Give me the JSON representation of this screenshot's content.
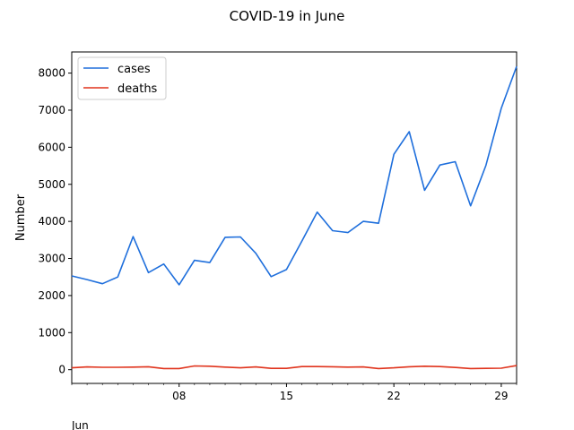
{
  "chart_data": {
    "type": "line",
    "title": "COVID-19 in June",
    "xlabel": "",
    "ylabel": "Number",
    "x_axis_secondary_label": "Jun",
    "x": [
      "2020-06-01",
      "2020-06-02",
      "2020-06-03",
      "2020-06-04",
      "2020-06-05",
      "2020-06-06",
      "2020-06-07",
      "2020-06-08",
      "2020-06-09",
      "2020-06-10",
      "2020-06-11",
      "2020-06-12",
      "2020-06-13",
      "2020-06-14",
      "2020-06-15",
      "2020-06-16",
      "2020-06-17",
      "2020-06-18",
      "2020-06-19",
      "2020-06-20",
      "2020-06-21",
      "2020-06-22",
      "2020-06-23",
      "2020-06-24",
      "2020-06-25",
      "2020-06-26",
      "2020-06-27",
      "2020-06-28",
      "2020-06-29",
      "2020-06-30"
    ],
    "xticks": [
      {
        "value": "2020-06-08",
        "label": "08"
      },
      {
        "value": "2020-06-15",
        "label": "15"
      },
      {
        "value": "2020-06-22",
        "label": "22"
      },
      {
        "value": "2020-06-29",
        "label": "29"
      }
    ],
    "ylim": [
      -370,
      8570
    ],
    "yticks": [
      0,
      1000,
      2000,
      3000,
      4000,
      5000,
      6000,
      7000,
      8000
    ],
    "grid": false,
    "legend_position": "top-left",
    "series": [
      {
        "name": "cases",
        "color": "#1f6fdc",
        "values": [
          2530,
          2430,
          2320,
          2500,
          3590,
          2620,
          2850,
          2290,
          2950,
          2890,
          3570,
          3580,
          3140,
          2510,
          2700,
          3470,
          4250,
          3750,
          3700,
          4000,
          3950,
          5810,
          6420,
          4840,
          5520,
          5610,
          4420,
          5510,
          7050,
          8180
        ]
      },
      {
        "name": "deaths",
        "color": "#e0331c",
        "values": [
          50,
          75,
          65,
          65,
          70,
          80,
          30,
          30,
          100,
          95,
          70,
          50,
          75,
          35,
          35,
          85,
          85,
          80,
          70,
          75,
          30,
          50,
          80,
          95,
          85,
          60,
          30,
          35,
          40,
          110
        ]
      }
    ]
  }
}
